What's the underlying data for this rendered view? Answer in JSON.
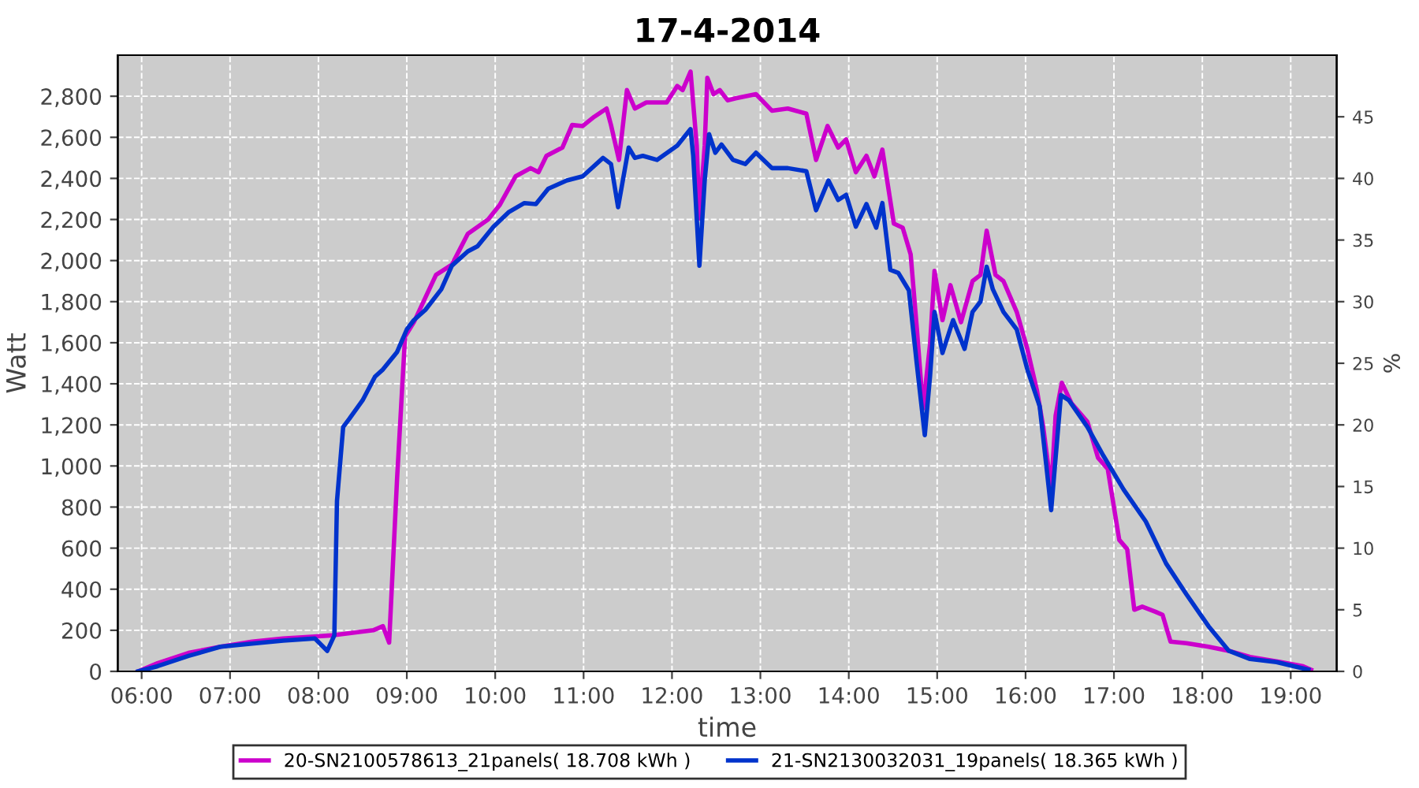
{
  "chart_data": {
    "type": "line",
    "title": "17-4-2014",
    "xlabel": "time",
    "ylabel": "Watt",
    "y2label": "%",
    "xlim": [
      5.73,
      19.52
    ],
    "ylim": [
      0,
      3000
    ],
    "y2lim": [
      0,
      50
    ],
    "xticks": [
      {
        "value": 6,
        "label": "06:00"
      },
      {
        "value": 7,
        "label": "07:00"
      },
      {
        "value": 8,
        "label": "08:00"
      },
      {
        "value": 9,
        "label": "09:00"
      },
      {
        "value": 10,
        "label": "10:00"
      },
      {
        "value": 11,
        "label": "11:00"
      },
      {
        "value": 12,
        "label": "12:00"
      },
      {
        "value": 13,
        "label": "13:00"
      },
      {
        "value": 14,
        "label": "14:00"
      },
      {
        "value": 15,
        "label": "15:00"
      },
      {
        "value": 16,
        "label": "16:00"
      },
      {
        "value": 17,
        "label": "17:00"
      },
      {
        "value": 18,
        "label": "18:00"
      },
      {
        "value": 19,
        "label": "19:00"
      }
    ],
    "yticks": [
      0,
      200,
      400,
      600,
      800,
      {
        "value": 1000,
        "label": "1,000"
      },
      {
        "value": 1200,
        "label": "1,200"
      },
      {
        "value": 1400,
        "label": "1,400"
      },
      {
        "value": 1600,
        "label": "1,600"
      },
      {
        "value": 1800,
        "label": "1,800"
      },
      {
        "value": 2000,
        "label": "2,000"
      },
      {
        "value": 2200,
        "label": "2,200"
      },
      {
        "value": 2400,
        "label": "2,400"
      },
      {
        "value": 2600,
        "label": "2,600"
      },
      {
        "value": 2800,
        "label": "2,800"
      }
    ],
    "y2ticks": [
      0,
      5,
      10,
      15,
      20,
      25,
      30,
      35,
      40,
      45
    ],
    "grid": true,
    "legend": "bottom",
    "marker": "none",
    "line_style": "solid",
    "series": [
      {
        "name": "20-SN2100578613_21panels( 18.708 kWh )",
        "color": "#cc00cc",
        "x": [
          5.96,
          6.18,
          6.53,
          6.89,
          7.25,
          7.6,
          7.96,
          8.14,
          8.62,
          8.73,
          8.8,
          8.89,
          8.98,
          9.08,
          9.21,
          9.33,
          9.51,
          9.69,
          9.92,
          10.05,
          10.23,
          10.4,
          10.49,
          10.58,
          10.76,
          10.87,
          10.99,
          11.12,
          11.26,
          11.31,
          11.4,
          11.49,
          11.58,
          11.71,
          11.94,
          12.06,
          12.12,
          12.21,
          12.28,
          12.31,
          12.37,
          12.4,
          12.47,
          12.54,
          12.63,
          12.72,
          12.95,
          13.13,
          13.31,
          13.52,
          13.63,
          13.76,
          13.88,
          13.97,
          14.08,
          14.2,
          14.29,
          14.38,
          14.51,
          14.61,
          14.7,
          14.77,
          14.84,
          14.92,
          14.97,
          15.06,
          15.15,
          15.27,
          15.4,
          15.49,
          15.56,
          15.66,
          15.75,
          15.9,
          16.02,
          16.13,
          16.2,
          16.29,
          16.34,
          16.41,
          16.52,
          16.7,
          16.82,
          16.93,
          17.06,
          17.15,
          17.23,
          17.32,
          17.47,
          17.55,
          17.64,
          17.82,
          18.07,
          18.3,
          18.54,
          18.89,
          19.14,
          19.23
        ],
        "values": [
          0,
          40,
          90,
          120,
          145,
          160,
          170,
          175,
          200,
          220,
          140,
          940,
          1630,
          1700,
          1820,
          1930,
          1980,
          2130,
          2200,
          2270,
          2410,
          2450,
          2430,
          2510,
          2550,
          2660,
          2655,
          2700,
          2740,
          2660,
          2490,
          2830,
          2740,
          2770,
          2770,
          2850,
          2830,
          2920,
          2560,
          2205,
          2560,
          2890,
          2810,
          2830,
          2780,
          2790,
          2810,
          2730,
          2740,
          2715,
          2490,
          2655,
          2550,
          2590,
          2430,
          2510,
          2410,
          2540,
          2180,
          2160,
          2030,
          1670,
          1280,
          1595,
          1950,
          1710,
          1880,
          1700,
          1900,
          1930,
          2145,
          1930,
          1900,
          1750,
          1570,
          1365,
          1190,
          885,
          1245,
          1405,
          1305,
          1215,
          1040,
          985,
          640,
          595,
          300,
          315,
          290,
          275,
          145,
          137,
          120,
          100,
          70,
          45,
          25,
          8
        ]
      },
      {
        "name": "21-SN2130032031_19panels( 18.365 kWh )",
        "color": "#0033cc",
        "x": [
          5.96,
          6.18,
          6.53,
          6.89,
          7.25,
          7.6,
          7.96,
          8.1,
          8.18,
          8.21,
          8.28,
          8.35,
          8.5,
          8.64,
          8.73,
          8.89,
          9.0,
          9.08,
          9.21,
          9.39,
          9.51,
          9.69,
          9.8,
          9.98,
          10.15,
          10.33,
          10.46,
          10.6,
          10.81,
          10.99,
          11.22,
          11.31,
          11.39,
          11.51,
          11.58,
          11.67,
          11.83,
          12.06,
          12.21,
          12.24,
          12.31,
          12.37,
          12.42,
          12.49,
          12.56,
          12.69,
          12.83,
          12.95,
          13.13,
          13.31,
          13.52,
          13.63,
          13.77,
          13.88,
          13.97,
          14.08,
          14.2,
          14.31,
          14.38,
          14.47,
          14.56,
          14.68,
          14.77,
          14.86,
          14.92,
          14.97,
          15.06,
          15.18,
          15.31,
          15.4,
          15.49,
          15.56,
          15.63,
          15.75,
          15.9,
          16.02,
          16.16,
          16.22,
          16.29,
          16.4,
          16.49,
          16.7,
          16.88,
          17.11,
          17.36,
          17.59,
          17.82,
          18.07,
          18.3,
          18.54,
          18.84,
          19.2
        ],
        "values": [
          0,
          25,
          75,
          120,
          135,
          150,
          160,
          100,
          175,
          830,
          1190,
          1230,
          1320,
          1435,
          1470,
          1555,
          1665,
          1710,
          1760,
          1860,
          1975,
          2045,
          2070,
          2165,
          2235,
          2280,
          2275,
          2350,
          2390,
          2410,
          2500,
          2470,
          2260,
          2550,
          2500,
          2510,
          2490,
          2560,
          2640,
          2510,
          1975,
          2390,
          2615,
          2525,
          2565,
          2490,
          2470,
          2525,
          2450,
          2450,
          2435,
          2245,
          2390,
          2295,
          2320,
          2165,
          2275,
          2160,
          2280,
          1955,
          1940,
          1855,
          1495,
          1150,
          1440,
          1750,
          1550,
          1710,
          1570,
          1750,
          1800,
          1970,
          1860,
          1750,
          1665,
          1470,
          1290,
          1060,
          785,
          1345,
          1320,
          1190,
          1050,
          885,
          730,
          525,
          375,
          220,
          100,
          60,
          45,
          8
        ]
      }
    ]
  }
}
